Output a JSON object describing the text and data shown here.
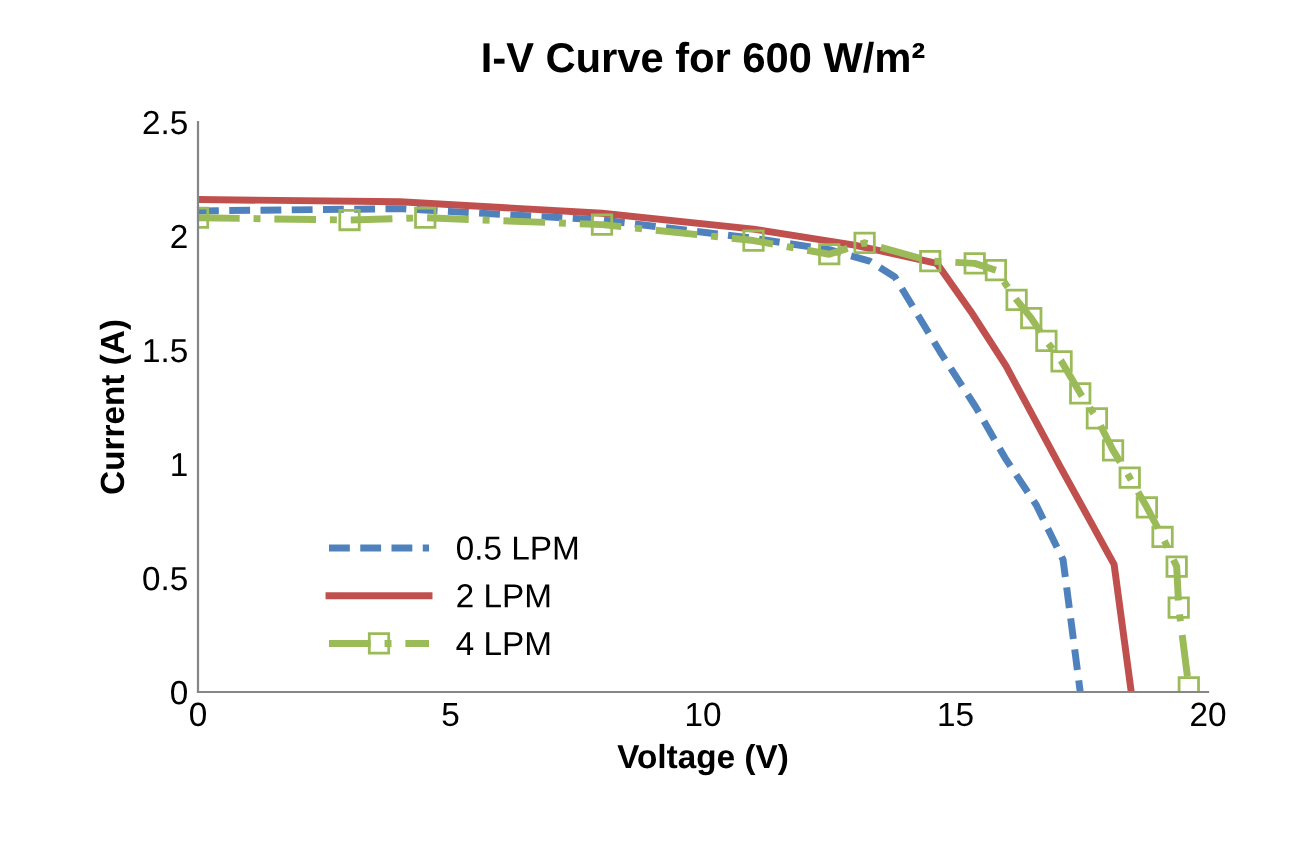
{
  "chart_data": {
    "type": "line",
    "title": "I-V Curve for 600 W/m²",
    "xlabel": "Voltage (V)",
    "ylabel": "Current (A)",
    "xlim": [
      0,
      20
    ],
    "xticks": [
      0,
      5,
      10,
      15,
      20
    ],
    "ylim": [
      0,
      2.5
    ],
    "yticks": [
      0,
      0.5,
      1,
      1.5,
      2,
      2.5
    ],
    "grid": false,
    "legend": "bottom left",
    "series": [
      {
        "name": "0.5 LPM",
        "color": "#4f81bd",
        "line_style": "dashed",
        "marker": "none",
        "x": [
          0,
          4,
          8,
          11,
          12.5,
          13.3,
          13.8,
          14.7,
          15.4,
          16.0,
          16.6,
          17.13,
          17.47
        ],
        "values": [
          2.11,
          2.12,
          2.07,
          1.99,
          1.94,
          1.89,
          1.82,
          1.49,
          1.25,
          1.02,
          0.82,
          0.58,
          0
        ]
      },
      {
        "name": "2 LPM",
        "color": "#c0504d",
        "line_style": "solid",
        "marker": "none",
        "x": [
          0,
          4,
          8,
          11,
          13,
          14.63,
          15.3,
          16.0,
          17.07,
          18.14,
          18.48
        ],
        "values": [
          2.16,
          2.15,
          2.1,
          2.03,
          1.96,
          1.88,
          1.67,
          1.43,
          0.99,
          0.56,
          0
        ]
      },
      {
        "name": "4 LPM",
        "color": "#9bbb59",
        "line_style": "dashdot",
        "marker": "square",
        "x": [
          0,
          3,
          4.5,
          8,
          11,
          12.5,
          13.2,
          14.5,
          15.38,
          15.8,
          16.21,
          16.5,
          16.8,
          17.1,
          17.47,
          17.8,
          18.12,
          18.45,
          18.79,
          19.1,
          19.38,
          19.42,
          19.62
        ],
        "values": [
          2.08,
          2.07,
          2.08,
          2.05,
          1.98,
          1.92,
          1.97,
          1.89,
          1.88,
          1.85,
          1.72,
          1.64,
          1.54,
          1.45,
          1.31,
          1.2,
          1.06,
          0.94,
          0.81,
          0.68,
          0.55,
          0.37,
          0.02
        ]
      }
    ]
  }
}
